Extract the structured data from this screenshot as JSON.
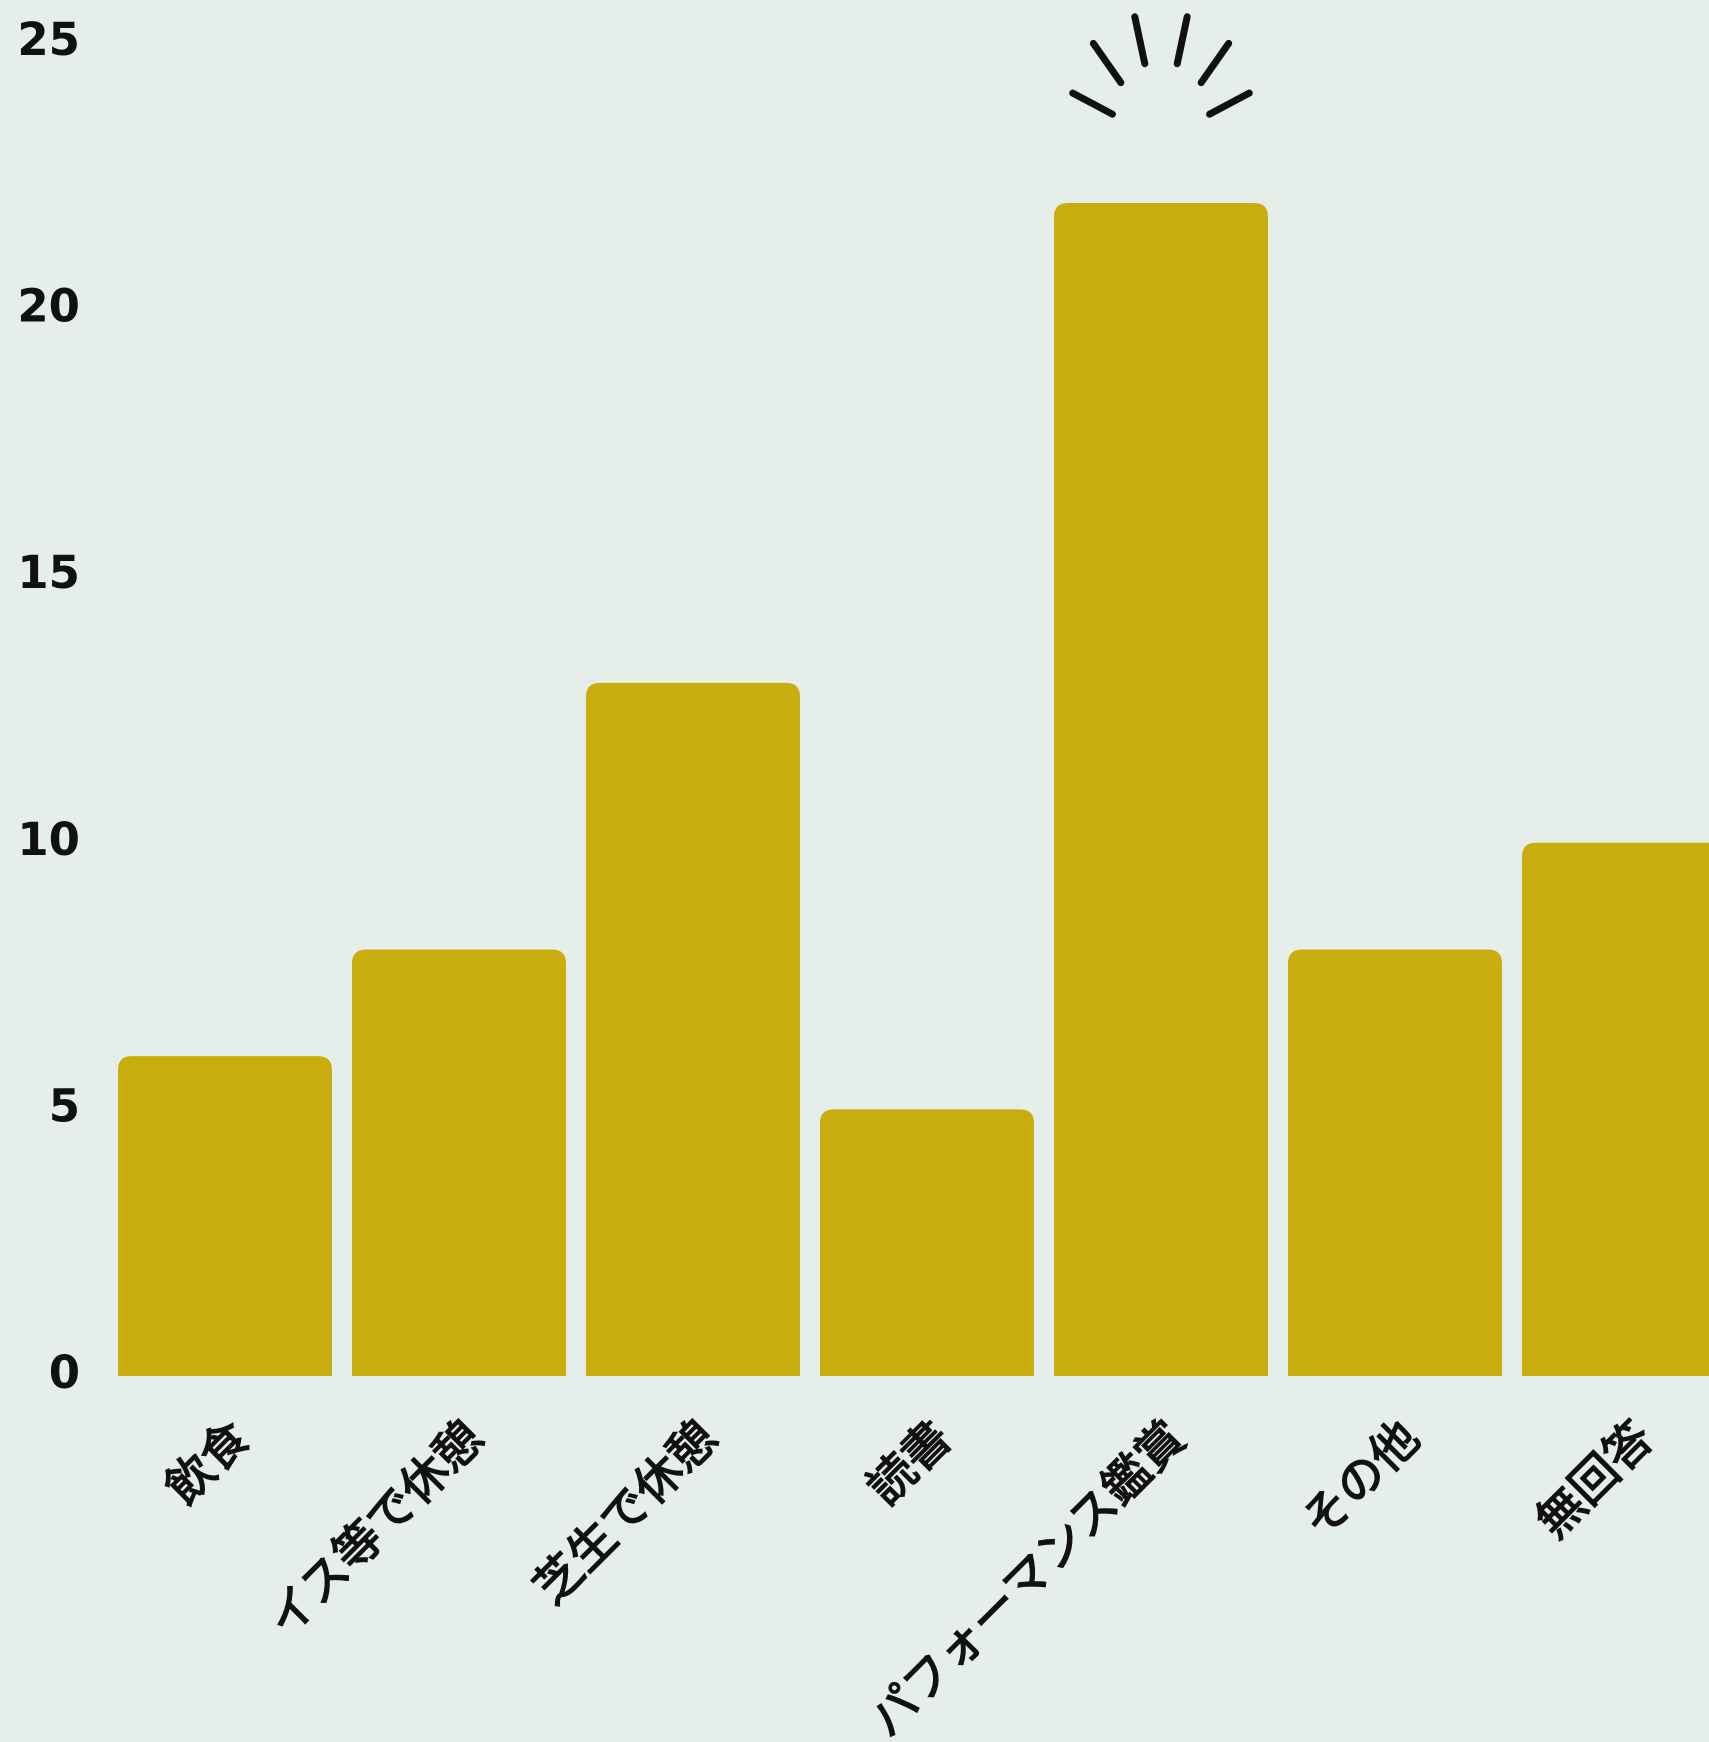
{
  "colors": {
    "background": "#e5eee8",
    "bar": "#c9ac0e",
    "text": "#111111",
    "highlight_mark": "#111111"
  },
  "chart_data": {
    "type": "bar",
    "title": "",
    "xlabel": "",
    "ylabel": "",
    "categories": [
      "飲食",
      "イス等で休憩",
      "芝生で休憩",
      "読書",
      "パフォーマンス鑑賞",
      "その他",
      "無回答"
    ],
    "values": [
      6,
      8,
      13,
      5,
      22,
      8,
      10
    ],
    "ylim": [
      0,
      25
    ],
    "yticks": [
      0,
      5,
      10,
      15,
      20,
      25
    ],
    "grid": false,
    "legend": "none",
    "highlight_category": "パフォーマンス鑑賞"
  }
}
